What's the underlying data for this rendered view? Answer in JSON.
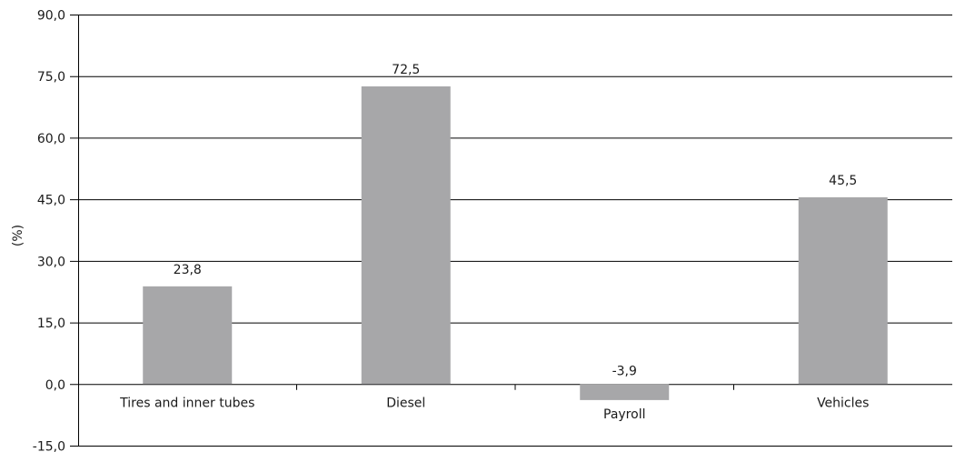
{
  "chart_data": {
    "type": "bar",
    "ylabel": "(%)",
    "ylim": [
      -15,
      90
    ],
    "yticks": [
      "90,0",
      "75,0",
      "60,0",
      "45,0",
      "30,0",
      "15,0",
      "0,0",
      "-15,0"
    ],
    "yticks_values": [
      90,
      75,
      60,
      45,
      30,
      15,
      0,
      -15
    ],
    "grid": true,
    "categories": [
      "Tires and inner tubes",
      "Diesel",
      "Payroll",
      "Vehicles"
    ],
    "values": [
      23.8,
      72.5,
      -3.9,
      45.5
    ],
    "value_labels": [
      "23,8",
      "72,5",
      "-3,9",
      "45,5"
    ],
    "colors": {
      "bar": "#a7a7a9",
      "grid": "#000000"
    }
  }
}
